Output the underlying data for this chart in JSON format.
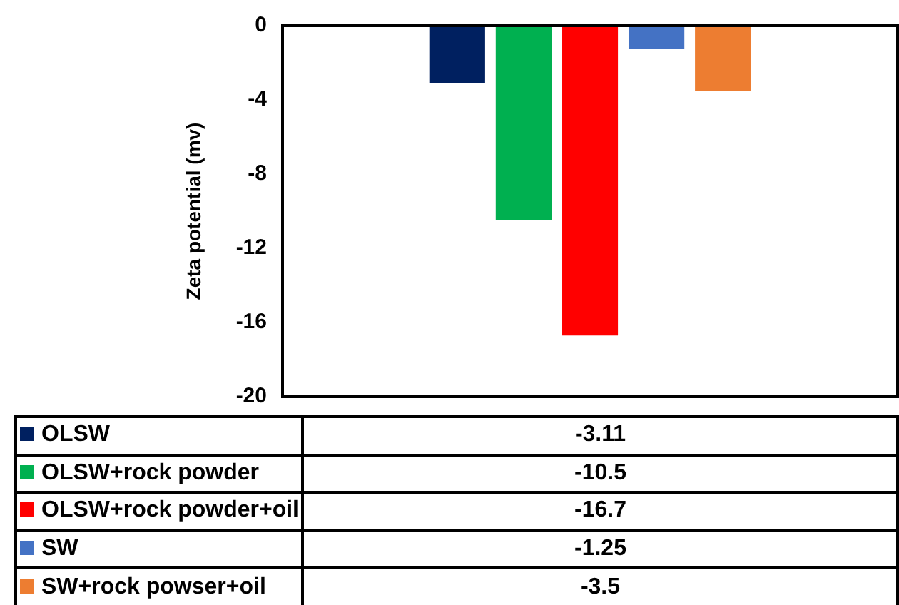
{
  "chart_data": {
    "type": "bar",
    "ylabel": "Zeta potential (mv)",
    "categories": [
      null
    ],
    "series": [
      {
        "name": "OLSW",
        "color": "#002060",
        "values": [
          -3.11
        ]
      },
      {
        "name": "OLSW+rock powder",
        "color": "#00b050",
        "values": [
          -10.5
        ]
      },
      {
        "name": "OLSW+rock powder+oil",
        "color": "#ff0000",
        "values": [
          -16.7
        ]
      },
      {
        "name": "SW",
        "color": "#4472c4",
        "values": [
          -1.25
        ]
      },
      {
        "name": "SW+rock powser+oil",
        "color": "#ed7d31",
        "values": [
          -3.5
        ]
      }
    ],
    "annotations": [
      "-3.11",
      "-10.5",
      "-16.7",
      "-1.25",
      "-3.5"
    ],
    "ylim": [
      -20,
      0
    ],
    "yticks": [
      -20,
      -16,
      -12,
      -8,
      -4,
      0
    ],
    "grid": false,
    "legend": "bottom"
  }
}
